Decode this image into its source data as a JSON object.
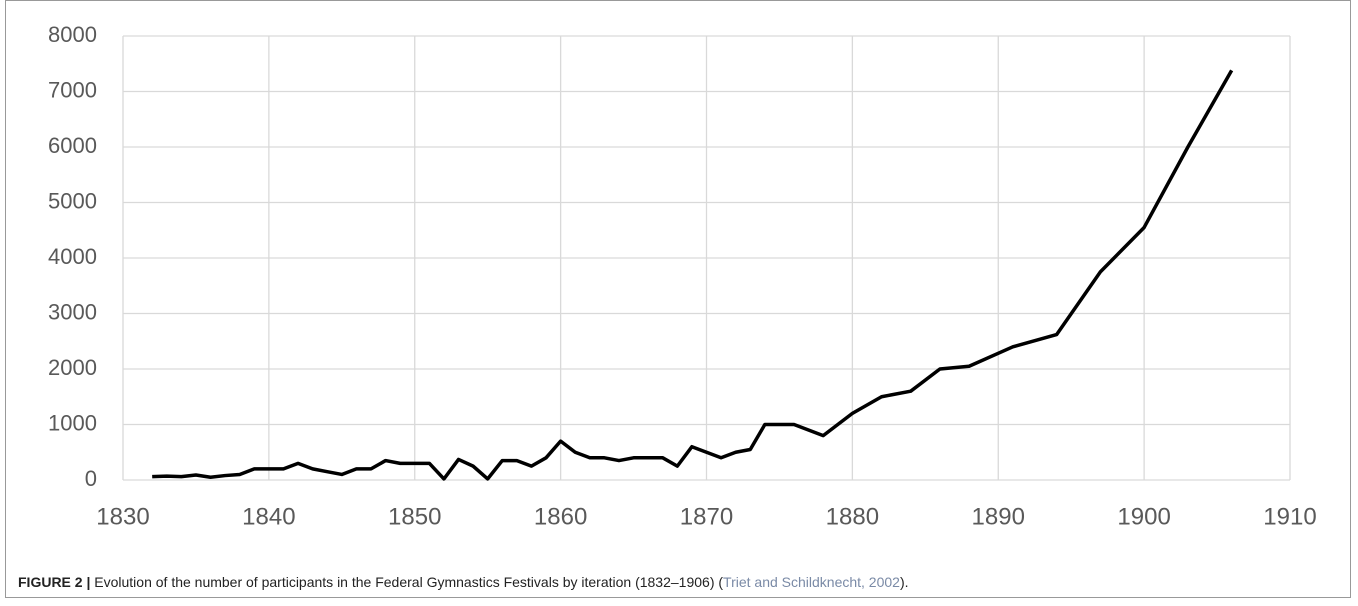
{
  "chart_data": {
    "type": "line",
    "x": [
      1832,
      1833,
      1834,
      1835,
      1836,
      1837,
      1838,
      1839,
      1840,
      1841,
      1842,
      1843,
      1844,
      1845,
      1846,
      1847,
      1848,
      1849,
      1850,
      1851,
      1852,
      1853,
      1854,
      1855,
      1856,
      1857,
      1858,
      1859,
      1860,
      1861,
      1862,
      1863,
      1864,
      1865,
      1866,
      1867,
      1868,
      1869,
      1871,
      1872,
      1873,
      1874,
      1876,
      1878,
      1880,
      1882,
      1884,
      1886,
      1888,
      1891,
      1894,
      1897,
      1900,
      1903,
      1906
    ],
    "values": [
      60,
      70,
      60,
      90,
      50,
      80,
      100,
      200,
      200,
      200,
      300,
      200,
      150,
      100,
      200,
      200,
      350,
      300,
      300,
      300,
      20,
      370,
      250,
      20,
      350,
      350,
      250,
      400,
      700,
      500,
      400,
      400,
      350,
      400,
      400,
      400,
      250,
      600,
      400,
      500,
      550,
      1000,
      1000,
      800,
      1200,
      1500,
      1600,
      2000,
      2050,
      2400,
      2620,
      3750,
      4550,
      6000,
      7380
    ],
    "color": "#000000",
    "xlim": [
      1830,
      1910
    ],
    "xticks": [
      1830,
      1840,
      1850,
      1860,
      1870,
      1880,
      1890,
      1900,
      1910
    ],
    "ylim": [
      0,
      8000
    ],
    "yticks": [
      0,
      1000,
      2000,
      3000,
      4000,
      5000,
      6000,
      7000,
      8000
    ],
    "grid": true
  },
  "caption": {
    "label": "FIGURE 2 |",
    "text": "Evolution of the number of participants in the Federal Gymnastics Festivals by iteration (1832–1906) (",
    "citation": "Triet and Schildknecht, 2002",
    "end": ")."
  }
}
